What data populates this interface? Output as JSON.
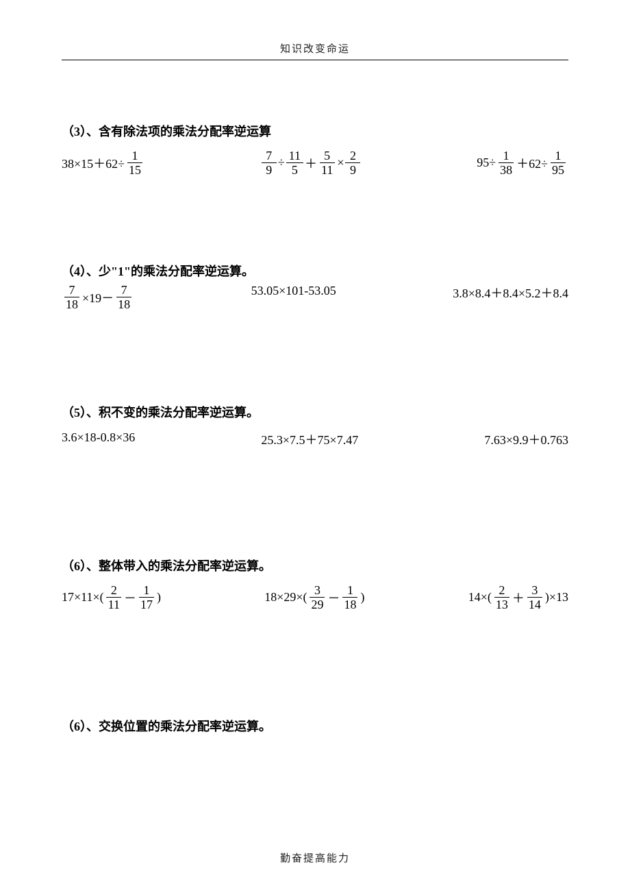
{
  "header": "知识改变命运",
  "footer": "勤奋提高能力",
  "font_family": "SimSun",
  "font_size_pt": 13,
  "title_font_size_pt": 13,
  "colors": {
    "text": "#000000",
    "background": "#ffffff",
    "rule": "#000000"
  },
  "sections": [
    {
      "title": "（3）、含有除法项的乘法分配率逆运算",
      "exprs": [
        {
          "tokens": [
            "38×15＋62÷",
            {
              "n": "1",
              "d": "15"
            }
          ]
        },
        {
          "tokens": [
            {
              "n": "7",
              "d": "9"
            },
            "÷",
            {
              "n": "11",
              "d": "5"
            },
            "＋",
            {
              "n": "5",
              "d": "11"
            },
            "×",
            {
              "n": "2",
              "d": "9"
            }
          ]
        },
        {
          "tokens": [
            "95÷",
            {
              "n": "1",
              "d": "38"
            },
            "＋62÷",
            {
              "n": "1",
              "d": "95"
            }
          ]
        }
      ]
    },
    {
      "title": "（4）、少\"1\"的乘法分配率逆运算。",
      "exprs": [
        {
          "tokens": [
            {
              "n": "7",
              "d": "18"
            },
            "×19－",
            {
              "n": "7",
              "d": "18"
            }
          ]
        },
        {
          "tokens": [
            "53.05×101-53.05"
          ]
        },
        {
          "tokens": [
            "3.8×8.4＋8.4×5.2＋8.4"
          ]
        }
      ]
    },
    {
      "title": "（5）、积不变的乘法分配率逆运算。",
      "exprs": [
        {
          "tokens": [
            "3.6×18-0.8×36"
          ]
        },
        {
          "tokens": [
            "25.3×7.5＋75×7.47"
          ]
        },
        {
          "tokens": [
            "7.63×9.9＋0.763"
          ]
        }
      ]
    },
    {
      "title": "（6）、整体带入的乘法分配率逆运算。",
      "exprs": [
        {
          "tokens": [
            "17×11×(",
            {
              "n": "2",
              "d": "11"
            },
            "－",
            {
              "n": "1",
              "d": "17"
            },
            ")"
          ]
        },
        {
          "tokens": [
            "18×29×(",
            {
              "n": "3",
              "d": "29"
            },
            "－",
            {
              "n": "1",
              "d": "18"
            },
            ")"
          ]
        },
        {
          "tokens": [
            "14×(",
            {
              "n": "2",
              "d": "13"
            },
            "＋",
            {
              "n": "3",
              "d": "14"
            },
            ")×13"
          ]
        }
      ]
    },
    {
      "title": "（6）、交换位置的乘法分配率逆运算。",
      "exprs": []
    }
  ]
}
